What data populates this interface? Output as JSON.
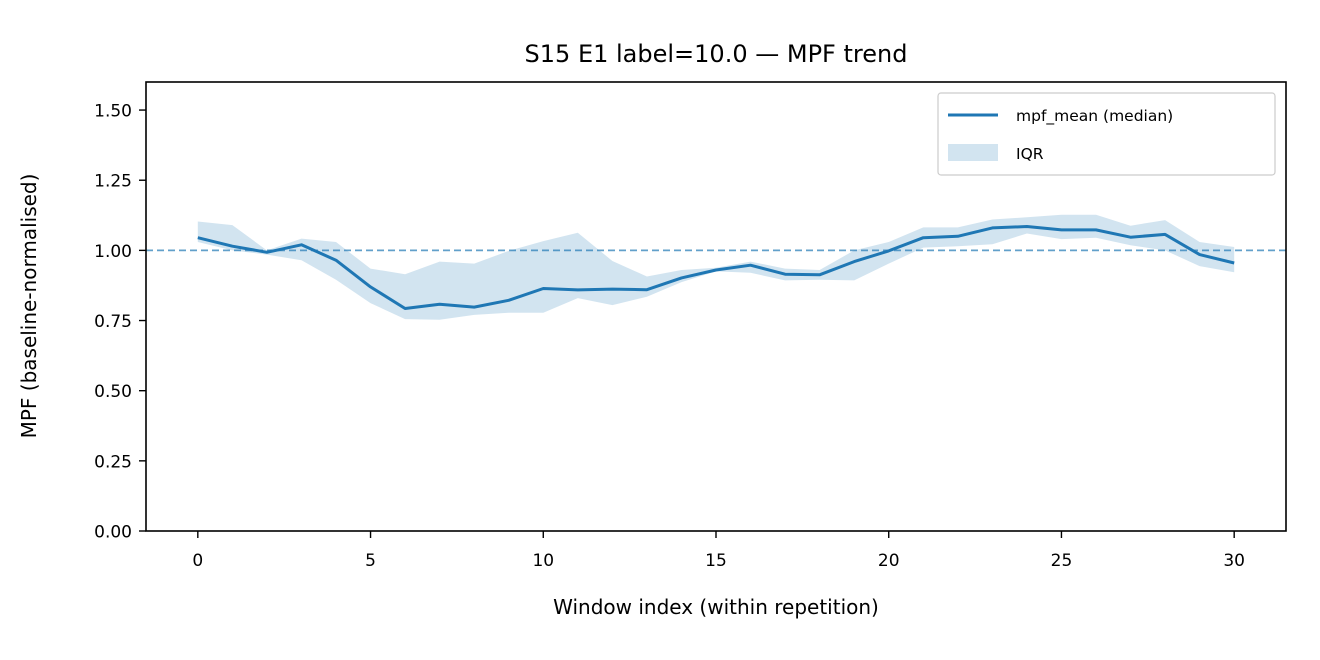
{
  "chart_data": {
    "type": "line",
    "title": "S15 E1 label=10.0 — MPF trend",
    "xlabel": "Window index (within repetition)",
    "ylabel": "MPF (baseline-normalised)",
    "xlim": [
      -1.5,
      31.5
    ],
    "ylim": [
      0.0,
      1.6
    ],
    "xticks": [
      0,
      5,
      10,
      15,
      20,
      25,
      30
    ],
    "xtick_labels": [
      "0",
      "5",
      "10",
      "15",
      "20",
      "25",
      "30"
    ],
    "yticks": [
      0.0,
      0.25,
      0.5,
      0.75,
      1.0,
      1.25,
      1.5
    ],
    "ytick_labels": [
      "0.00",
      "0.25",
      "0.50",
      "0.75",
      "1.00",
      "1.25",
      "1.50"
    ],
    "grid": false,
    "legend_position": "top-right",
    "reference_line": {
      "y": 1.0,
      "style": "dashed"
    },
    "x": [
      0,
      1,
      2,
      3,
      4,
      5,
      6,
      7,
      8,
      9,
      10,
      11,
      12,
      13,
      14,
      15,
      16,
      17,
      18,
      19,
      20,
      21,
      22,
      23,
      24,
      25,
      26,
      27,
      28,
      29,
      30
    ],
    "series": [
      {
        "name": "mpf_mean (median)",
        "kind": "line",
        "color": "#1f77b4",
        "values": [
          1.045,
          1.015,
          0.993,
          1.02,
          0.965,
          0.87,
          0.793,
          0.808,
          0.798,
          0.822,
          0.864,
          0.859,
          0.862,
          0.86,
          0.902,
          0.93,
          0.947,
          0.915,
          0.913,
          0.96,
          0.998,
          1.045,
          1.05,
          1.08,
          1.085,
          1.073,
          1.073,
          1.047,
          1.057,
          0.985,
          0.955
        ]
      },
      {
        "name": "IQR",
        "kind": "band",
        "color": "#1f77b4",
        "opacity": 0.2,
        "upper": [
          1.103,
          1.09,
          1.0,
          1.042,
          1.03,
          0.935,
          0.915,
          0.96,
          0.953,
          0.998,
          1.033,
          1.063,
          0.962,
          0.907,
          0.93,
          0.938,
          0.96,
          0.935,
          0.93,
          1.0,
          1.03,
          1.082,
          1.082,
          1.11,
          1.118,
          1.127,
          1.127,
          1.088,
          1.108,
          1.03,
          1.012
        ],
        "lower": [
          1.03,
          1.0,
          0.985,
          0.965,
          0.895,
          0.812,
          0.755,
          0.753,
          0.77,
          0.778,
          0.778,
          0.83,
          0.805,
          0.835,
          0.887,
          0.925,
          0.92,
          0.893,
          0.895,
          0.893,
          0.953,
          1.01,
          1.015,
          1.022,
          1.06,
          1.04,
          1.045,
          1.018,
          1.0,
          0.944,
          0.922
        ]
      }
    ]
  }
}
